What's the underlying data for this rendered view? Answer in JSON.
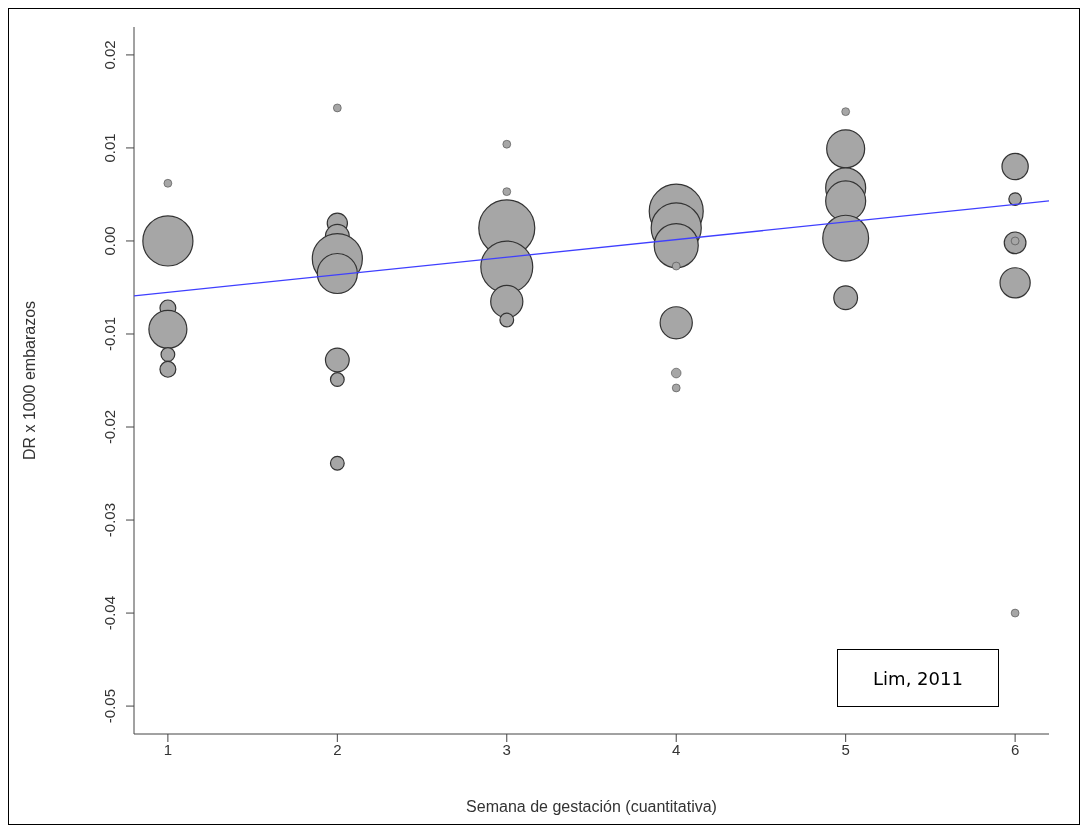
{
  "chart_data": {
    "type": "bubble",
    "xlabel": "Semana de gestación (cuantitativa)",
    "ylabel": "DR x 1000 embarazos",
    "annotations": [
      "Lim, 2011"
    ],
    "xlim": [
      0.8,
      6.2
    ],
    "xticks": [
      1,
      2,
      3,
      4,
      5,
      6
    ],
    "ylim": [
      -0.053,
      0.023
    ],
    "yticks": [
      {
        "value": -0.05,
        "label": "-0.05"
      },
      {
        "value": -0.04,
        "label": "-0.04"
      },
      {
        "value": -0.03,
        "label": "-0.03"
      },
      {
        "value": -0.02,
        "label": "-0.02"
      },
      {
        "value": -0.01,
        "label": "-0.01"
      },
      {
        "value": 0,
        "label": "0.00"
      },
      {
        "value": 0.01,
        "label": "0.01"
      },
      {
        "value": 0.02,
        "label": "0.02"
      }
    ],
    "series": [
      {
        "color": "#a6a6a6",
        "x": [
          1,
          1,
          1,
          1,
          1,
          1,
          2,
          2,
          2,
          2,
          2,
          2,
          2,
          2,
          3,
          3,
          3,
          3,
          3,
          3,
          4,
          4,
          4,
          4,
          4,
          4,
          4,
          5,
          5,
          5,
          5,
          5,
          5,
          6,
          6,
          6,
          6,
          6,
          6
        ],
        "values": [
          0.0062,
          0.0,
          -0.0072,
          -0.0095,
          -0.0122,
          -0.0138,
          0.0143,
          0.0019,
          0.0005,
          -0.0019,
          -0.0035,
          -0.0128,
          -0.0149,
          -0.0239,
          0.0104,
          0.0053,
          0.0014,
          -0.0028,
          -0.0065,
          -0.0085,
          0.0032,
          0.0014,
          -0.0005,
          -0.0027,
          -0.0088,
          -0.0142,
          -0.0158,
          0.0139,
          0.0099,
          0.0057,
          0.0043,
          0.0003,
          -0.0061,
          0.008,
          0.0045,
          -0.0002,
          0.0,
          -0.0045,
          -0.04
        ],
        "sizes": [
          0.02,
          0.8,
          0.08,
          0.46,
          0.06,
          0.08,
          0.02,
          0.13,
          0.18,
          0.8,
          0.51,
          0.18,
          0.06,
          0.06,
          0.02,
          0.02,
          1,
          0.86,
          0.33,
          0.06,
          0.93,
          0.8,
          0.62,
          0.02,
          0.33,
          0.03,
          0.02,
          0.02,
          0.46,
          0.51,
          0.51,
          0.67,
          0.18,
          0.22,
          0.05,
          0.15,
          0.02,
          0.29,
          0.02
        ]
      },
      {
        "type": "line",
        "color": "#3f3fff",
        "x": [
          0.8,
          6.2
        ],
        "values": [
          -0.0059,
          0.0043
        ]
      }
    ]
  }
}
